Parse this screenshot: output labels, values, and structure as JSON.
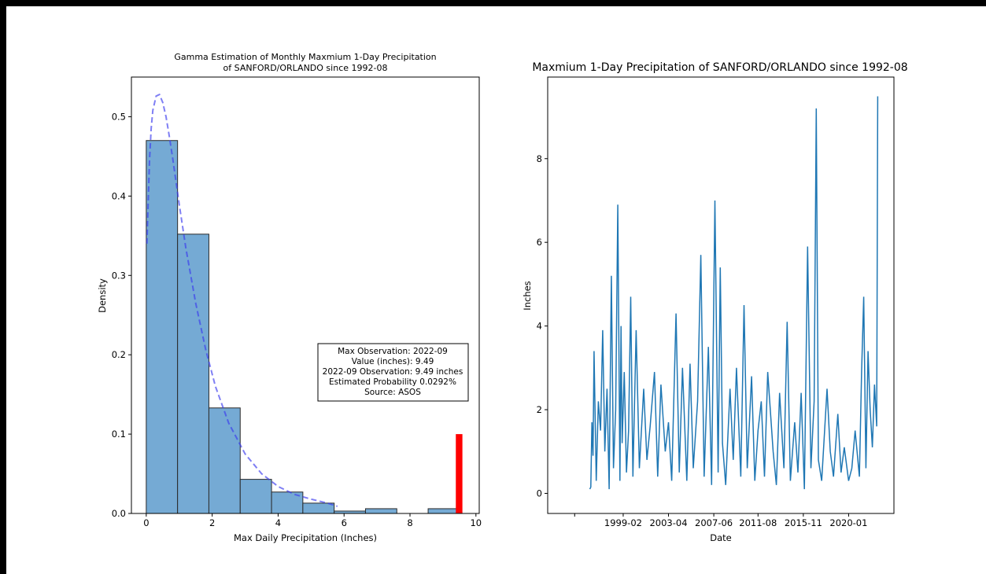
{
  "chart_data": [
    {
      "type": "bar",
      "subtype": "histogram-with-gamma-fit",
      "title": [
        "Gamma Estimation of Monthly Maxmium 1-Day Precipitation",
        "of SANFORD/ORLANDO since 1992-08"
      ],
      "xlabel": "Max Daily Precipitation (Inches)",
      "ylabel": "Density",
      "xlim": [
        -0.45,
        10.1
      ],
      "ylim": [
        0,
        0.55
      ],
      "xticks": [
        0,
        2,
        4,
        6,
        8,
        10
      ],
      "yticks": [
        0.0,
        0.1,
        0.2,
        0.3,
        0.4,
        0.5
      ],
      "ytick_labels": [
        "0.0",
        "0.1",
        "0.2",
        "0.3",
        "0.4",
        "0.5"
      ],
      "bin_edges": [
        0,
        0.95,
        1.9,
        2.85,
        3.8,
        4.75,
        5.7,
        6.65,
        7.6,
        8.55,
        9.5
      ],
      "densities": [
        0.47,
        0.352,
        0.133,
        0.043,
        0.027,
        0.013,
        0.003,
        0.006,
        0.0,
        0.006
      ],
      "bar_color": "#75aad4",
      "highlight": {
        "x": 9.49,
        "width": 0.2,
        "height": 0.1,
        "color": "#ff0000"
      },
      "gamma_fit": {
        "color": "#3a3aee",
        "x": [
          0.02,
          0.05,
          0.1,
          0.15,
          0.2,
          0.3,
          0.4,
          0.5,
          0.6,
          0.7,
          0.8,
          1.0,
          1.2,
          1.5,
          1.8,
          2.1,
          2.5,
          3.0,
          3.5,
          4.0,
          4.5,
          5.0,
          5.5,
          5.8
        ],
        "y": [
          0.34,
          0.38,
          0.445,
          0.485,
          0.508,
          0.526,
          0.528,
          0.518,
          0.5,
          0.475,
          0.448,
          0.39,
          0.335,
          0.265,
          0.207,
          0.16,
          0.114,
          0.075,
          0.05,
          0.034,
          0.024,
          0.018,
          0.013,
          0.009
        ]
      },
      "annotation": [
        "Max Observation: 2022-09",
        "Value (inches): 9.49",
        "2022-09 Observation: 9.49 inches",
        "Estimated Probability 0.0292%",
        "Source: ASOS"
      ]
    },
    {
      "type": "line",
      "title": "Maxmium 1-Day Precipitation of SANFORD/ORLANDO since 1992-08",
      "xlabel": "Date",
      "ylabel": "Inches",
      "xlim": [
        1992.1,
        2024.2
      ],
      "ylim": [
        -0.48,
        9.95
      ],
      "xticks": [
        1994.6,
        1999.1,
        2003.3,
        2007.5,
        2011.6,
        2015.8,
        2020.0
      ],
      "xtick_labels": [
        "",
        "1999-02",
        "2003-04",
        "2007-06",
        "2011-08",
        "2015-11",
        "2020-01"
      ],
      "yticks": [
        0,
        2,
        4,
        6,
        8
      ],
      "line_color": "#1f77b4",
      "x": [
        1996.0,
        1996.1,
        1996.2,
        1996.3,
        1996.4,
        1996.6,
        1996.8,
        1997.0,
        1997.2,
        1997.4,
        1997.6,
        1997.8,
        1998.0,
        1998.2,
        1998.4,
        1998.6,
        1998.8,
        1998.9,
        1999.0,
        1999.2,
        1999.4,
        1999.6,
        1999.8,
        2000.0,
        2000.3,
        2000.6,
        2001.0,
        2001.3,
        2001.6,
        2002.0,
        2002.3,
        2002.6,
        2003.0,
        2003.3,
        2003.6,
        2004.0,
        2004.3,
        2004.6,
        2005.0,
        2005.3,
        2005.6,
        2006.0,
        2006.3,
        2006.6,
        2007.0,
        2007.3,
        2007.6,
        2007.9,
        2008.1,
        2008.3,
        2008.6,
        2009.0,
        2009.3,
        2009.6,
        2010.0,
        2010.3,
        2010.6,
        2011.0,
        2011.3,
        2011.6,
        2011.9,
        2012.2,
        2012.5,
        2013.0,
        2013.3,
        2013.6,
        2014.0,
        2014.3,
        2014.6,
        2015.0,
        2015.3,
        2015.6,
        2015.9,
        2016.2,
        2016.5,
        2016.8,
        2017.0,
        2017.2,
        2017.5,
        2018.0,
        2018.3,
        2018.6,
        2019.0,
        2019.3,
        2019.6,
        2020.0,
        2020.3,
        2020.6,
        2021.0,
        2021.2,
        2021.4,
        2021.6,
        2021.8,
        2022.0,
        2022.2,
        2022.4,
        2022.6,
        2022.7
      ],
      "y": [
        0.1,
        0.15,
        1.7,
        0.9,
        3.4,
        0.3,
        2.2,
        1.5,
        3.9,
        1.0,
        2.5,
        0.1,
        5.2,
        0.6,
        2.0,
        6.9,
        0.3,
        4.0,
        1.2,
        2.9,
        0.5,
        1.5,
        4.7,
        0.4,
        3.9,
        0.6,
        2.5,
        0.8,
        1.6,
        2.9,
        0.4,
        2.6,
        1.0,
        1.7,
        0.3,
        4.3,
        0.5,
        3.0,
        0.3,
        3.1,
        0.6,
        2.2,
        5.7,
        0.4,
        3.5,
        0.2,
        7.0,
        0.5,
        5.4,
        1.2,
        0.2,
        2.5,
        0.8,
        3.0,
        0.4,
        4.5,
        0.6,
        2.8,
        0.3,
        1.5,
        2.2,
        0.4,
        2.9,
        1.0,
        0.2,
        2.4,
        0.6,
        4.1,
        0.3,
        1.7,
        0.5,
        2.4,
        0.1,
        5.9,
        0.6,
        2.2,
        9.2,
        0.8,
        0.3,
        2.5,
        1.0,
        0.4,
        1.9,
        0.5,
        1.1,
        0.3,
        0.6,
        1.5,
        0.4,
        2.9,
        4.7,
        0.6,
        3.4,
        2.0,
        1.1,
        2.6,
        1.6,
        9.49
      ]
    }
  ]
}
